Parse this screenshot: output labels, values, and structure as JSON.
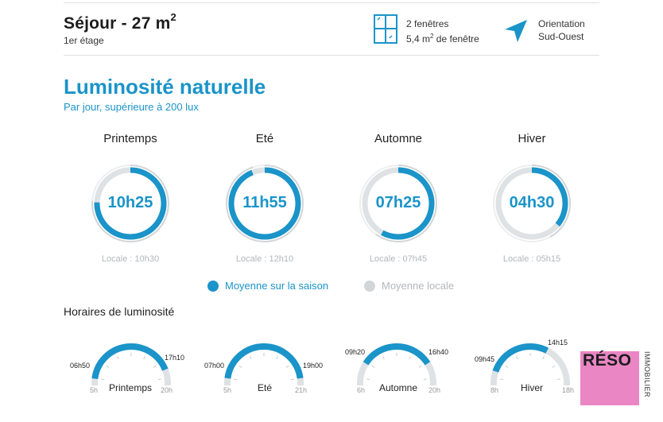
{
  "room": {
    "title": "Séjour - 27 m",
    "title_sup": "2",
    "floor": "1er étage"
  },
  "windows": {
    "icon": "window-icon",
    "line1": "2 fenêtres",
    "line2_prefix": "5,4 m",
    "line2_sup": "2",
    "line2_suffix": " de fenêtre"
  },
  "orientation": {
    "icon": "compass-arrow-icon",
    "line1": "Orientation",
    "line2": "Sud-Ouest"
  },
  "luminosity": {
    "title": "Luminosité naturelle",
    "subtitle": "Par jour, supérieure à 200 lux",
    "seasons": [
      {
        "name": "Printemps",
        "value": "10h25",
        "local": "Locale : 10h30",
        "season_fraction": 0.755,
        "local_fraction": 0.76
      },
      {
        "name": "Eté",
        "value": "11h55",
        "local": "Locale : 12h10",
        "season_fraction": 0.94,
        "local_fraction": 0.95
      },
      {
        "name": "Automne",
        "value": "07h25",
        "local": "Locale : 07h45",
        "season_fraction": 0.58,
        "local_fraction": 0.6
      },
      {
        "name": "Hiver",
        "value": "04h30",
        "local": "Locale : 05h15",
        "season_fraction": 0.36,
        "local_fraction": 0.42
      }
    ],
    "legend": {
      "season_label": "Moyenne sur la saison",
      "local_label": "Moyenne locale"
    }
  },
  "hours": {
    "title": "Horaires de luminosité",
    "seasons": [
      {
        "name": "Printemps",
        "start": "06h50",
        "end": "17h10",
        "min": "5h",
        "max": "20h",
        "start_h": 6.83,
        "end_h": 17.17,
        "range": [
          5,
          20
        ]
      },
      {
        "name": "Eté",
        "start": "07h00",
        "end": "19h00",
        "min": "5h",
        "max": "21h",
        "start_h": 7.0,
        "end_h": 19.0,
        "range": [
          5,
          21
        ]
      },
      {
        "name": "Automne",
        "start": "09h20",
        "end": "16h40",
        "min": "6h",
        "max": "20h",
        "start_h": 9.33,
        "end_h": 16.67,
        "range": [
          6,
          20
        ]
      },
      {
        "name": "Hiver",
        "start": "09h45",
        "end": "14h15",
        "min": "8h",
        "max": "18h",
        "start_h": 9.75,
        "end_h": 14.25,
        "range": [
          8,
          18
        ]
      }
    ]
  },
  "colors": {
    "accent": "#1a94c9",
    "ring_bg": "#dfe2e5",
    "local_grey": "#d3d6d9",
    "logo_bg": "#ea86c3"
  },
  "logo": {
    "main": "RÉSO",
    "side": "IMMOBILIER"
  }
}
